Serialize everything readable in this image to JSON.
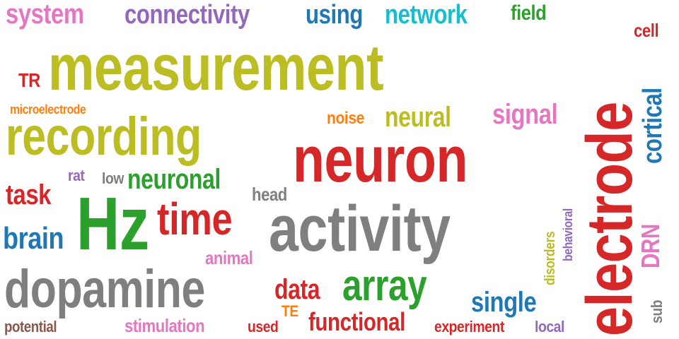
{
  "colors": {
    "background": "#ffffff",
    "red": "#d62728",
    "olive": "#bcbd22",
    "gray": "#7f7f7f",
    "green": "#2ca02c",
    "blue": "#1f77b4",
    "purple": "#9467bd",
    "pink": "#e377c2",
    "cyan": "#17becf",
    "orange": "#ff7f0e",
    "brown": "#8c564b"
  },
  "words": [
    {
      "text": "measurement",
      "weight": 1.0,
      "color": "olive"
    },
    {
      "text": "neuron",
      "weight": 0.96,
      "color": "red"
    },
    {
      "text": "electrode",
      "weight": 0.94,
      "color": "red"
    },
    {
      "text": "activity",
      "weight": 0.88,
      "color": "gray"
    },
    {
      "text": "recording",
      "weight": 0.82,
      "color": "olive"
    },
    {
      "text": "Hz",
      "weight": 0.8,
      "color": "green"
    },
    {
      "text": "dopamine",
      "weight": 0.76,
      "color": "gray"
    },
    {
      "text": "time",
      "weight": 0.6,
      "color": "red"
    },
    {
      "text": "array",
      "weight": 0.58,
      "color": "green"
    },
    {
      "text": "connectivity",
      "weight": 0.44,
      "color": "purple"
    },
    {
      "text": "network",
      "weight": 0.44,
      "color": "cyan"
    },
    {
      "text": "system",
      "weight": 0.42,
      "color": "pink"
    },
    {
      "text": "using",
      "weight": 0.42,
      "color": "blue"
    },
    {
      "text": "brain",
      "weight": 0.42,
      "color": "blue"
    },
    {
      "text": "neuronal",
      "weight": 0.4,
      "color": "green"
    },
    {
      "text": "data",
      "weight": 0.4,
      "color": "red"
    },
    {
      "text": "neural",
      "weight": 0.38,
      "color": "olive"
    },
    {
      "text": "cortical",
      "weight": 0.38,
      "color": "blue"
    },
    {
      "text": "single",
      "weight": 0.38,
      "color": "blue"
    },
    {
      "text": "functional",
      "weight": 0.36,
      "color": "red"
    },
    {
      "text": "task",
      "weight": 0.36,
      "color": "red"
    },
    {
      "text": "signal",
      "weight": 0.34,
      "color": "pink"
    },
    {
      "text": "DRN",
      "weight": 0.32,
      "color": "pink"
    },
    {
      "text": "field",
      "weight": 0.3,
      "color": "green"
    },
    {
      "text": "TR",
      "weight": 0.28,
      "color": "red"
    },
    {
      "text": "stimulation",
      "weight": 0.26,
      "color": "pink"
    },
    {
      "text": "cell",
      "weight": 0.26,
      "color": "red"
    },
    {
      "text": "animal",
      "weight": 0.24,
      "color": "pink"
    },
    {
      "text": "head",
      "weight": 0.24,
      "color": "gray"
    },
    {
      "text": "noise",
      "weight": 0.22,
      "color": "orange"
    },
    {
      "text": "low",
      "weight": 0.22,
      "color": "gray"
    },
    {
      "text": "experiment",
      "weight": 0.2,
      "color": "red"
    },
    {
      "text": "rat",
      "weight": 0.2,
      "color": "purple"
    },
    {
      "text": "TE",
      "weight": 0.2,
      "color": "orange"
    },
    {
      "text": "used",
      "weight": 0.2,
      "color": "red"
    },
    {
      "text": "local",
      "weight": 0.2,
      "color": "purple"
    },
    {
      "text": "potential",
      "weight": 0.2,
      "color": "brown"
    },
    {
      "text": "sub",
      "weight": 0.2,
      "color": "gray"
    },
    {
      "text": "disorders",
      "weight": 0.18,
      "color": "olive"
    },
    {
      "text": "behavioral",
      "weight": 0.16,
      "color": "purple"
    },
    {
      "text": "microelectrode",
      "weight": 0.16,
      "color": "orange"
    }
  ]
}
